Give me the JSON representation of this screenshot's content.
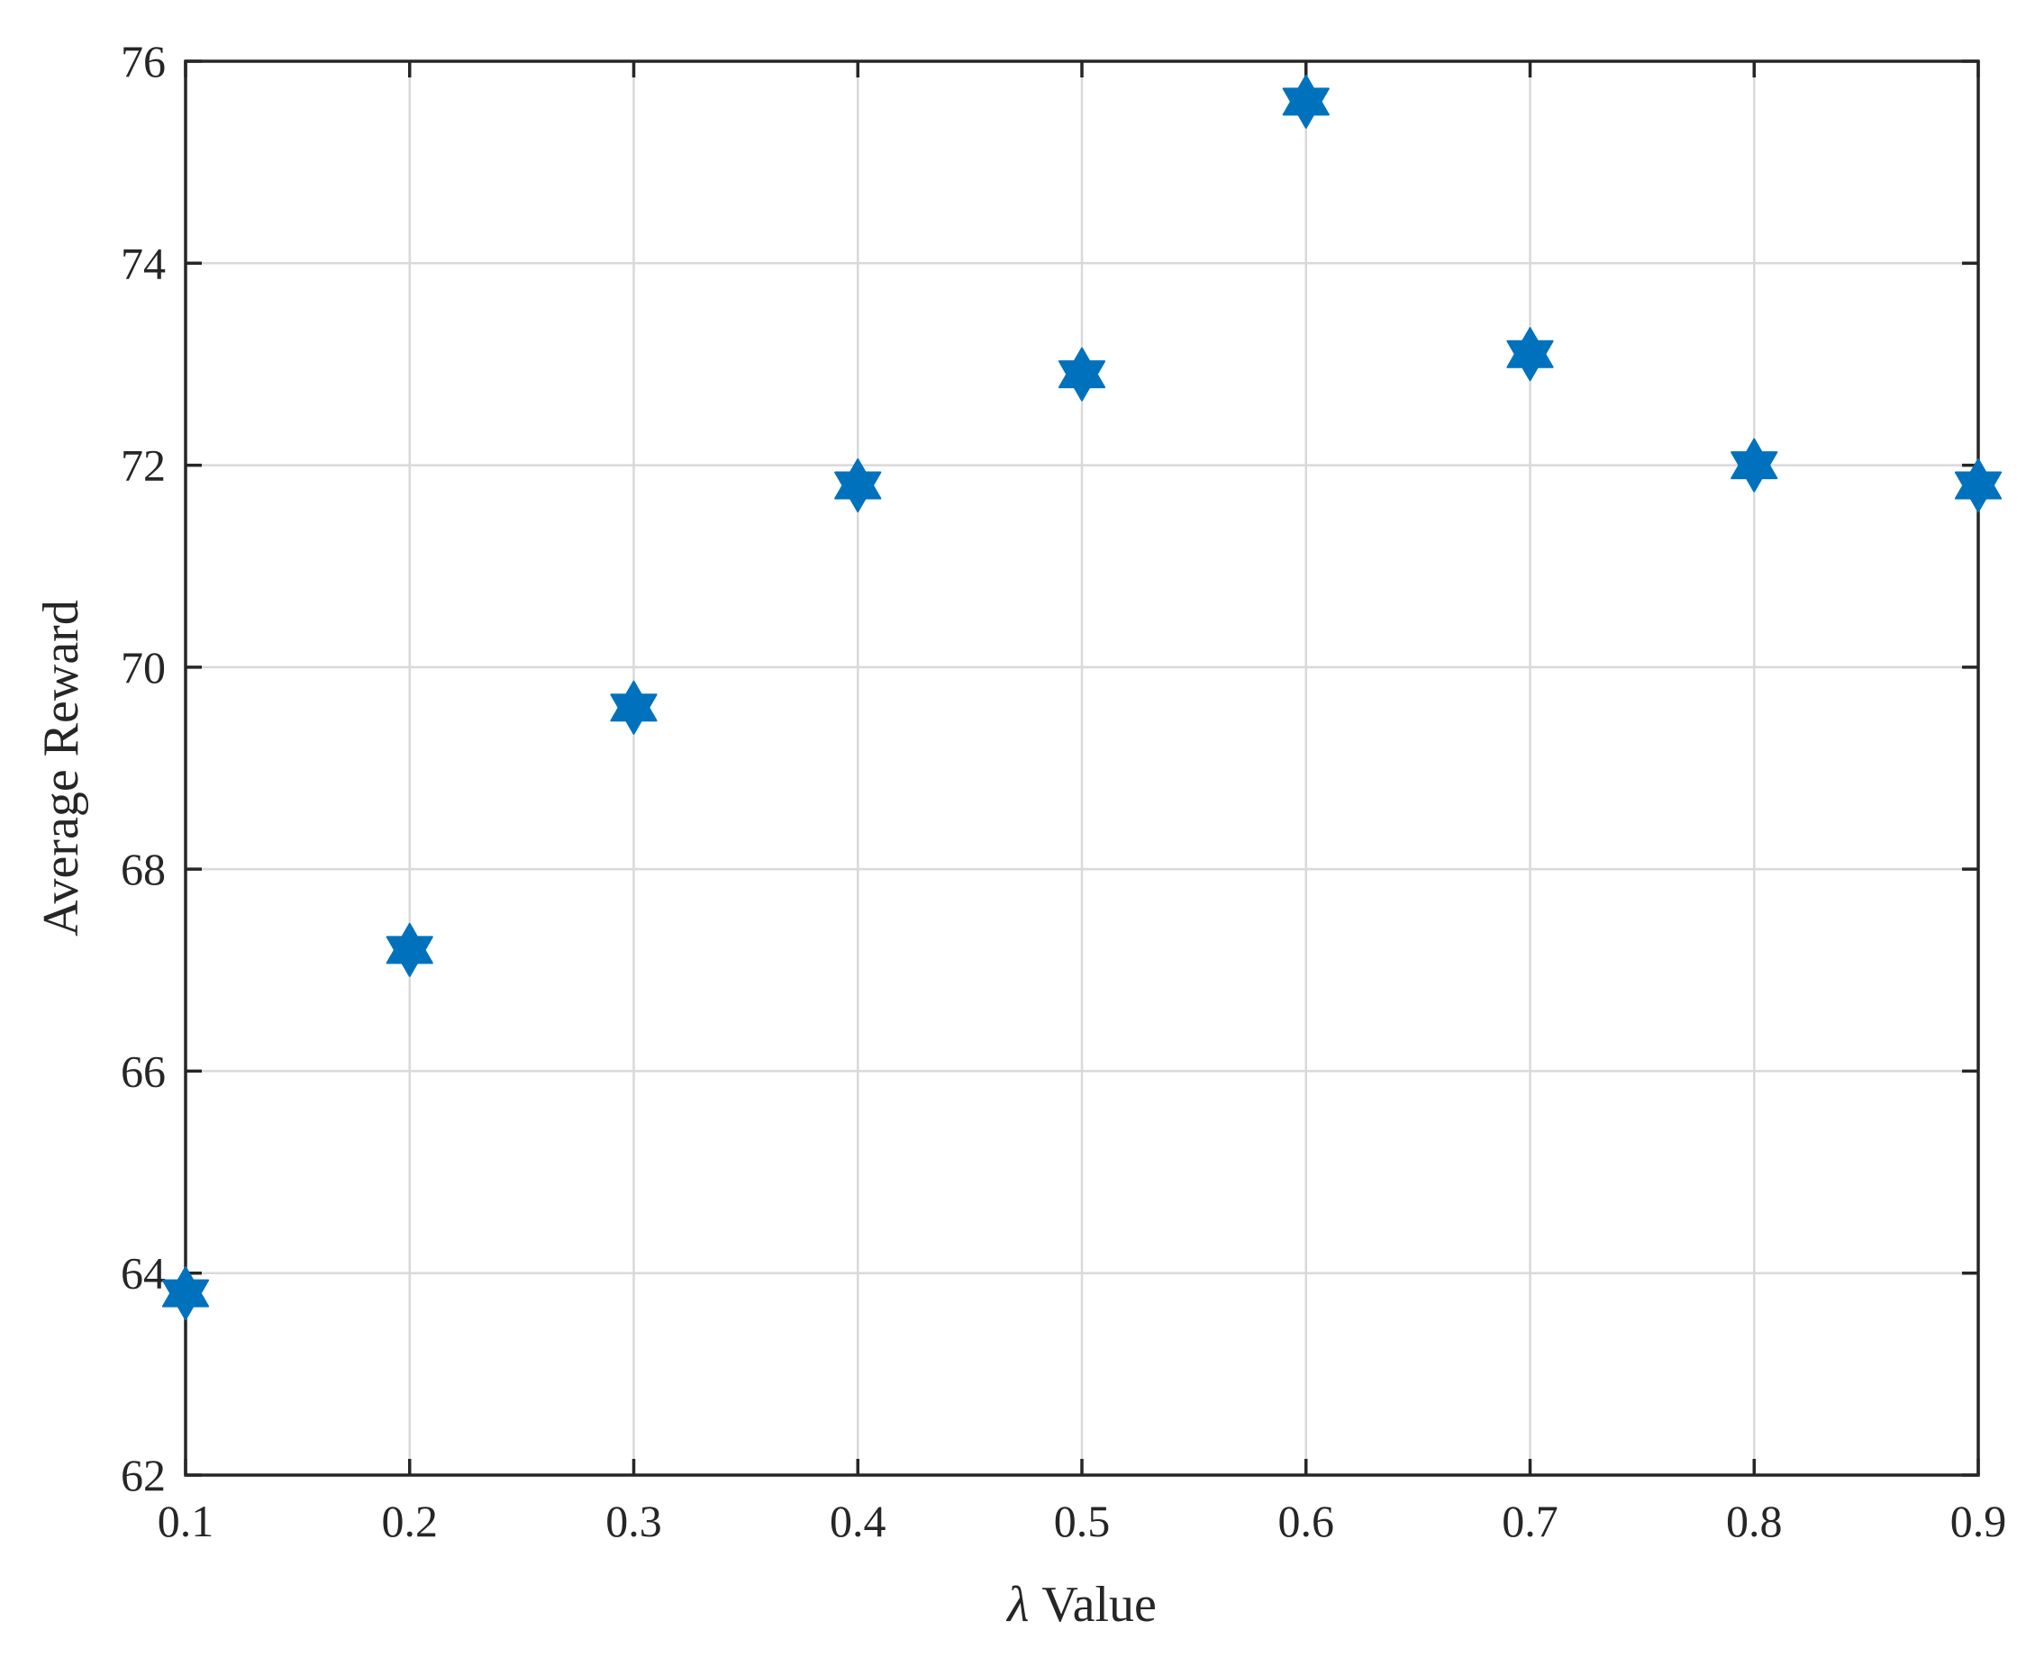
{
  "chart_data": {
    "type": "scatter",
    "title": "",
    "xlabel_symbol": "λ",
    "xlabel_text": " Value",
    "ylabel": "Average Reward",
    "xlim": [
      0.1,
      0.9
    ],
    "ylim": [
      62,
      76
    ],
    "xticks": [
      "0.1",
      "0.2",
      "0.3",
      "0.4",
      "0.5",
      "0.6",
      "0.7",
      "0.8",
      "0.9"
    ],
    "yticks": [
      "62",
      "64",
      "66",
      "68",
      "70",
      "72",
      "74",
      "76"
    ],
    "grid": true,
    "legend": "none",
    "marker": "hexagram",
    "color": "#0072BD",
    "x": [
      0.1,
      0.2,
      0.3,
      0.4,
      0.5,
      0.6,
      0.7,
      0.8,
      0.9
    ],
    "y": [
      63.8,
      67.2,
      69.6,
      71.8,
      72.9,
      75.6,
      73.1,
      72.0,
      71.8
    ]
  }
}
